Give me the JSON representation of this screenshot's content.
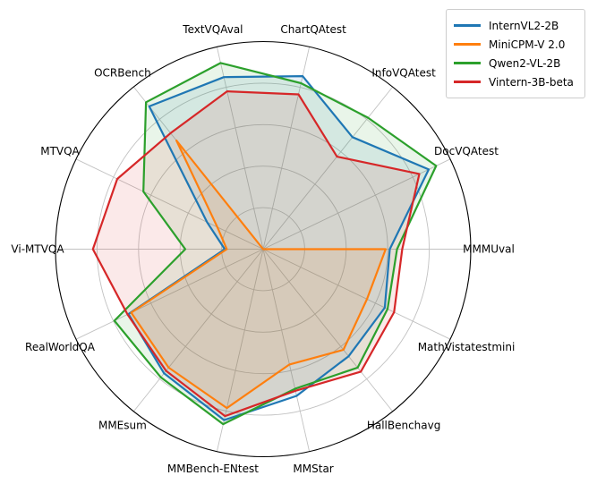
{
  "figure": {
    "background_color": "#ffffff",
    "grid_color": "#c2c2c2",
    "outline_color": "#000000",
    "text_color": "#000000"
  },
  "legend": {
    "position": "upper-right",
    "items": [
      {
        "label": "InternVL2-2B",
        "color": "#1f77b4"
      },
      {
        "label": "MiniCPM-V 2.0",
        "color": "#ff7f0e"
      },
      {
        "label": "Qwen2-VL-2B",
        "color": "#2ca02c"
      },
      {
        "label": "Vintern-3B-beta",
        "color": "#d62728"
      }
    ]
  },
  "chart_data": {
    "type": "radar",
    "title": "",
    "axes": [
      "MMMUval",
      "DocVQAtest",
      "InfoVQAtest",
      "ChartQAtest",
      "TextVQAval",
      "OCRBench",
      "MTVQA",
      "Vi-MTVQA",
      "RealWorldQA",
      "MMEsum",
      "MMBench-ENtest",
      "MMStar",
      "HallBenchavg",
      "MathVistatestmini"
    ],
    "axes_layout": "first axis points right (0 deg), subsequent axes counterclockwise at 25.714 deg steps",
    "rings": 5,
    "scale": "values normalized 0-1 of outer circle; gridline rings every 0.2; no radial tick labels shown",
    "grid_on": true,
    "fill_opacity": 0.1,
    "legend_position": "upper right",
    "series": [
      {
        "name": "InternVL2-2B",
        "color": "#1f77b4",
        "values": [
          0.61,
          0.885,
          0.69,
          0.855,
          0.85,
          0.88,
          0.3,
          0.185,
          0.72,
          0.765,
          0.845,
          0.725,
          0.66,
          0.65
        ]
      },
      {
        "name": "MiniCPM-V 2.0",
        "color": "#ff7f0e",
        "values": [
          0.59,
          0.0,
          0.0,
          0.0,
          0.0,
          0.67,
          0.245,
          0.175,
          0.705,
          0.73,
          0.785,
          0.57,
          0.62,
          0.555
        ]
      },
      {
        "name": "Qwen2-VL-2B",
        "color": "#2ca02c",
        "values": [
          0.645,
          0.925,
          0.81,
          0.82,
          0.92,
          0.905,
          0.64,
          0.375,
          0.795,
          0.79,
          0.865,
          0.69,
          0.73,
          0.665
        ]
      },
      {
        "name": "Vintern-3B-beta",
        "color": "#d62728",
        "values": [
          0.67,
          0.835,
          0.57,
          0.765,
          0.78,
          0.715,
          0.78,
          0.82,
          0.725,
          0.75,
          0.825,
          0.7,
          0.755,
          0.7
        ]
      }
    ]
  }
}
